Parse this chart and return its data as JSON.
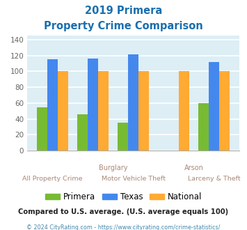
{
  "title_line1": "2019 Primera",
  "title_line2": "Property Crime Comparison",
  "title_color": "#1a6faf",
  "groups": [
    "All Property Crime",
    "Burglary",
    "Motor Vehicle Theft",
    "Arson",
    "Larceny & Theft"
  ],
  "primera": [
    55,
    46,
    35,
    0,
    60
  ],
  "texas": [
    115,
    116,
    121,
    0,
    112
  ],
  "national": [
    100,
    100,
    100,
    100,
    100
  ],
  "primera_color": "#77bb33",
  "texas_color": "#4488ee",
  "national_color": "#ffaa33",
  "ylim": [
    0,
    145
  ],
  "yticks": [
    0,
    20,
    40,
    60,
    80,
    100,
    120,
    140
  ],
  "bg_color": "#ddeef5",
  "grid_color": "#ffffff",
  "top_labels": [
    [
      "Burglary",
      1.5
    ],
    [
      "Arson",
      3.5
    ]
  ],
  "bottom_labels": [
    [
      "All Property Crime",
      0
    ],
    [
      "Motor Vehicle Theft",
      2
    ],
    [
      "Larceny & Theft",
      4
    ]
  ],
  "footer_text1": "Compared to U.S. average. (U.S. average equals 100)",
  "footer_text2": "© 2024 CityRating.com - https://www.cityrating.com/crime-statistics/",
  "legend_labels": [
    "Primera",
    "Texas",
    "National"
  ],
  "label_color": "#aa8877"
}
